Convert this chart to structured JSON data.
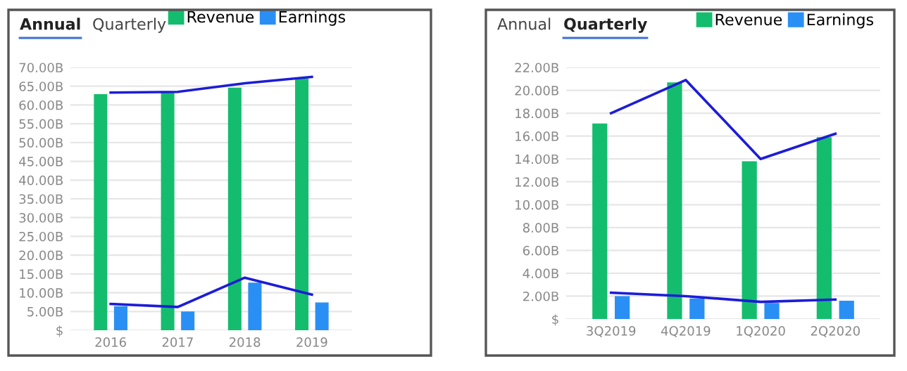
{
  "chart_data": [
    {
      "type": "bar",
      "title": "Annual",
      "subtitle": "Quarterly",
      "categories": [
        "2016",
        "2017",
        "2018",
        "2019"
      ],
      "series": [
        {
          "name": "Revenue",
          "color": "#14bd6e",
          "values": [
            62.9,
            63.3,
            64.6,
            67.1
          ]
        },
        {
          "name": "Earnings",
          "color": "#2a8ff5",
          "values": [
            6.4,
            5.0,
            12.7,
            7.4
          ]
        },
        {
          "type": "line",
          "color": "#1c1cd8",
          "values": [
            63.3,
            63.5,
            65.8,
            67.5
          ]
        },
        {
          "type": "line",
          "color": "#1c1cd8",
          "values": [
            7.0,
            6.2,
            14.0,
            9.5
          ]
        }
      ],
      "ylim": [
        0,
        70
      ],
      "yticks": [
        {
          "value": 0,
          "label": "$"
        },
        {
          "value": 5,
          "label": "5.00B"
        },
        {
          "value": 10,
          "label": "10.00B"
        },
        {
          "value": 15,
          "label": "15.00B"
        },
        {
          "value": 20,
          "label": "20.00B"
        },
        {
          "value": 25,
          "label": "25.00B"
        },
        {
          "value": 30,
          "label": "30.00B"
        },
        {
          "value": 35,
          "label": "35.00B"
        },
        {
          "value": 40,
          "label": "40.00B"
        },
        {
          "value": 45,
          "label": "45.00B"
        },
        {
          "value": 50,
          "label": "50.00B"
        },
        {
          "value": 55,
          "label": "55.00B"
        },
        {
          "value": 60,
          "label": "60.00B"
        },
        {
          "value": 65,
          "label": "65.00B"
        },
        {
          "value": 70,
          "label": "70.00B"
        }
      ],
      "grid": "y",
      "legend": "top right"
    },
    {
      "type": "bar",
      "title": "Quarterly",
      "annotations": [
        "Annual"
      ],
      "categories": [
        "3Q2019",
        "4Q2019",
        "1Q2020",
        "2Q2020"
      ],
      "series": [
        {
          "name": "Revenue",
          "color": "#14bd6e",
          "values": [
            17.1,
            20.7,
            13.8,
            15.9
          ]
        },
        {
          "name": "Earnings",
          "color": "#2a8ff5",
          "values": [
            2.0,
            1.8,
            1.4,
            1.6
          ]
        },
        {
          "type": "line",
          "color": "#1c1cd8",
          "values": [
            18.0,
            20.9,
            14.0,
            16.2
          ]
        },
        {
          "type": "line",
          "color": "#1c1cd8",
          "values": [
            2.3,
            2.0,
            1.5,
            1.7
          ]
        }
      ],
      "ylim": [
        0,
        22
      ],
      "yticks": [
        {
          "value": 0,
          "label": "$"
        },
        {
          "value": 2,
          "label": "2.00B"
        },
        {
          "value": 4,
          "label": "4.00B"
        },
        {
          "value": 6,
          "label": "6.00B"
        },
        {
          "value": 8,
          "label": "8.00B"
        },
        {
          "value": 10,
          "label": "10.00B"
        },
        {
          "value": 12,
          "label": "12.00B"
        },
        {
          "value": 14,
          "label": "14.00B"
        },
        {
          "value": 16,
          "label": "16.00B"
        },
        {
          "value": 18,
          "label": "18.00B"
        },
        {
          "value": 20,
          "label": "20.00B"
        },
        {
          "value": 22,
          "label": "22.00B"
        }
      ],
      "grid": "y",
      "legend": "top right"
    }
  ]
}
